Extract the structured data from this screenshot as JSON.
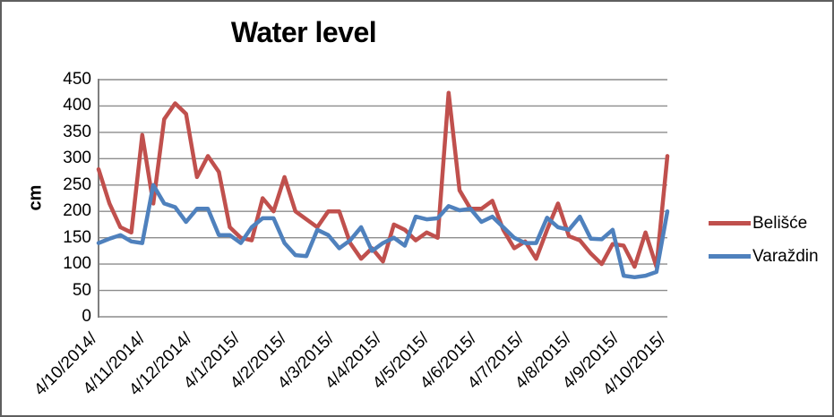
{
  "chart_data": {
    "type": "line",
    "title": "Water level",
    "ylabel": "cm",
    "xlabel": "",
    "ylim": [
      0,
      450
    ],
    "yticks": [
      0,
      50,
      100,
      150,
      200,
      250,
      300,
      350,
      400,
      450
    ],
    "grid": true,
    "legend_position": "right",
    "categories": [
      "4/10/2014/",
      "4/11/2014/",
      "4/12/2014/",
      "4/1/2015/",
      "4/2/2015/",
      "4/3/2015/",
      "4/4/2015/",
      "4/5/2015/",
      "4/6/2015/",
      "4/7/2015/",
      "4/8/2015/",
      "4/9/2015/",
      "4/10/2015/"
    ],
    "series": [
      {
        "name": "Belišće",
        "color": "#C0504D",
        "values": [
          280,
          215,
          170,
          160,
          345,
          215,
          375,
          405,
          385,
          265,
          305,
          275,
          170,
          150,
          145,
          225,
          200,
          265,
          200,
          185,
          170,
          200,
          200,
          140,
          110,
          130,
          105,
          175,
          165,
          145,
          160,
          150,
          425,
          240,
          205,
          205,
          220,
          165,
          130,
          143,
          110,
          165,
          215,
          153,
          145,
          120,
          100,
          138,
          135,
          95,
          160,
          95,
          305
        ]
      },
      {
        "name": "Varaždin",
        "color": "#4F81BD",
        "values": [
          140,
          148,
          155,
          143,
          140,
          250,
          215,
          208,
          180,
          205,
          205,
          155,
          155,
          140,
          170,
          187,
          187,
          140,
          117,
          115,
          165,
          155,
          130,
          145,
          170,
          125,
          140,
          150,
          135,
          190,
          185,
          187,
          210,
          202,
          205,
          180,
          190,
          170,
          150,
          140,
          140,
          188,
          170,
          165,
          190,
          148,
          147,
          165,
          78,
          75,
          78,
          85,
          200
        ]
      }
    ],
    "axis_color": "#7f7f7f",
    "gridline_color": "#8c8c8c"
  }
}
